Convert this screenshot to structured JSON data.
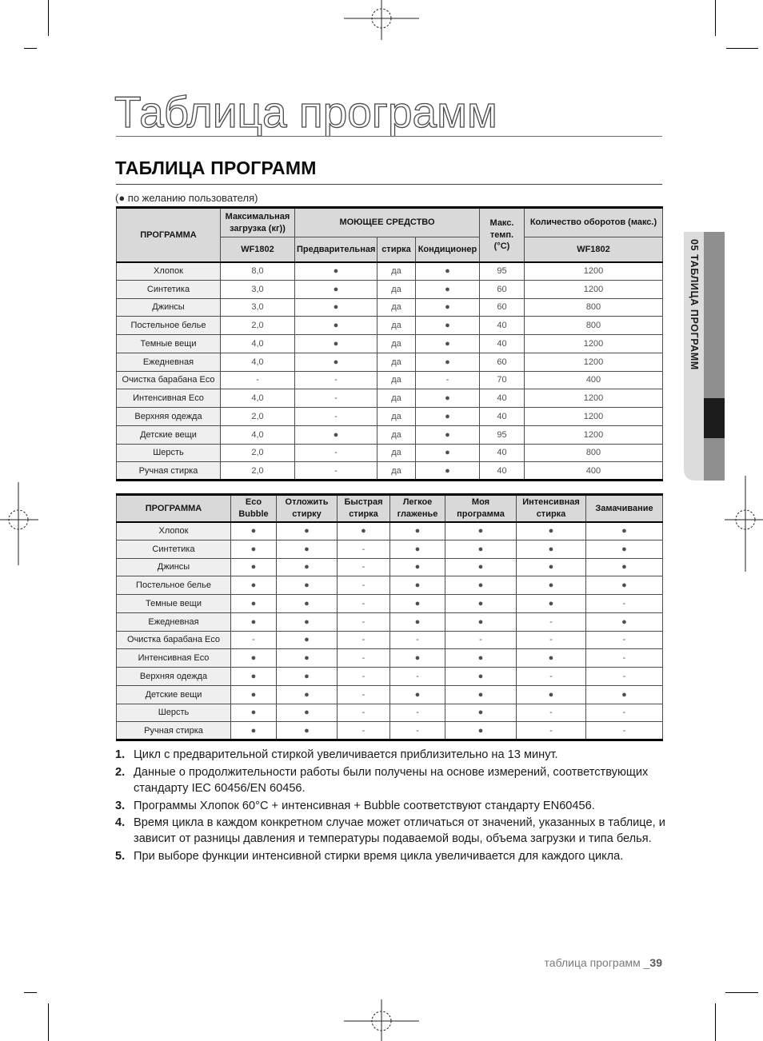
{
  "page_title": "Таблица программ",
  "section": {
    "heading": "ТАБЛИЦА ПРОГРАММ",
    "note": "(● по желанию пользователя)"
  },
  "sidebar": {
    "tab_label": "05 ТАБЛИЦА ПРОГРАММ"
  },
  "footer": {
    "label": "таблица программ _",
    "page_number": "39"
  },
  "table1": {
    "header": {
      "program": "ПРОГРАММА",
      "max_load": "Максимальная загрузка (кг))",
      "max_load_model": "WF1802",
      "detergent": "МОЮЩЕЕ СРЕДСТВО",
      "prewash": "Предварительная",
      "wash": "стирка",
      "softener": "Кондиционер",
      "max_temp_line1": "Макс.",
      "max_temp_line2": "темп. (°C)",
      "spin": "Количество оборотов (макс.)",
      "spin_model": "WF1802"
    },
    "rows": [
      [
        "Хлопок",
        "8,0",
        "●",
        "да",
        "●",
        "95",
        "1200"
      ],
      [
        "Синтетика",
        "3,0",
        "●",
        "да",
        "●",
        "60",
        "1200"
      ],
      [
        "Джинсы",
        "3,0",
        "●",
        "да",
        "●",
        "60",
        "800"
      ],
      [
        "Постельное белье",
        "2,0",
        "●",
        "да",
        "●",
        "40",
        "800"
      ],
      [
        "Темные вещи",
        "4,0",
        "●",
        "да",
        "●",
        "40",
        "1200"
      ],
      [
        "Ежедневная",
        "4,0",
        "●",
        "да",
        "●",
        "60",
        "1200"
      ],
      [
        "Очистка барабана Eco",
        "-",
        "-",
        "да",
        "-",
        "70",
        "400"
      ],
      [
        "Интенсивная Eco",
        "4,0",
        "-",
        "да",
        "●",
        "40",
        "1200"
      ],
      [
        "Верхняя одежда",
        "2,0",
        "-",
        "да",
        "●",
        "40",
        "1200"
      ],
      [
        "Детские вещи",
        "4,0",
        "●",
        "да",
        "●",
        "95",
        "1200"
      ],
      [
        "Шерсть",
        "2,0",
        "-",
        "да",
        "●",
        "40",
        "800"
      ],
      [
        "Ручная стирка",
        "2,0",
        "-",
        "да",
        "●",
        "40",
        "400"
      ]
    ]
  },
  "table2": {
    "header": [
      "ПРОГРАММА",
      "Eco Bubble",
      "Отложить стирку",
      "Быстрая стирка",
      "Легкое глаженье",
      "Моя программа",
      "Интенсивная стирка",
      "Замачивание"
    ],
    "rows": [
      [
        "Хлопок",
        "●",
        "●",
        "●",
        "●",
        "●",
        "●",
        "●"
      ],
      [
        "Синтетика",
        "●",
        "●",
        "-",
        "●",
        "●",
        "●",
        "●"
      ],
      [
        "Джинсы",
        "●",
        "●",
        "-",
        "●",
        "●",
        "●",
        "●"
      ],
      [
        "Постельное белье",
        "●",
        "●",
        "-",
        "●",
        "●",
        "●",
        "●"
      ],
      [
        "Темные вещи",
        "●",
        "●",
        "-",
        "●",
        "●",
        "●",
        "-"
      ],
      [
        "Ежедневная",
        "●",
        "●",
        "-",
        "●",
        "●",
        "-",
        "●"
      ],
      [
        "Очистка барабана Eco",
        "-",
        "●",
        "-",
        "-",
        "-",
        "-",
        "-"
      ],
      [
        "Интенсивная Eco",
        "●",
        "●",
        "-",
        "●",
        "●",
        "●",
        "-"
      ],
      [
        "Верхняя одежда",
        "●",
        "●",
        "-",
        "-",
        "●",
        "-",
        "-"
      ],
      [
        "Детские вещи",
        "●",
        "●",
        "-",
        "●",
        "●",
        "●",
        "●"
      ],
      [
        "Шерсть",
        "●",
        "●",
        "-",
        "-",
        "●",
        "-",
        "-"
      ],
      [
        "Ручная стирка",
        "●",
        "●",
        "-",
        "-",
        "●",
        "-",
        "-"
      ]
    ]
  },
  "footnotes": [
    "Цикл с предварительной стиркой увеличивается приблизительно на 13 минут.",
    "Данные о продолжительности работы были получены на основе измерений, соответствующих стандарту IEC 60456/EN 60456.",
    "Программы Хлопок 60°C + интенсивная + Bubble соответствуют стандарту EN60456.",
    "Время цикла в каждом конкретном случае может отличаться от значений, указанных в таблице, и зависит от разницы давления и температуры подаваемой воды, объема загрузки и типа белья.",
    "При выборе функции интенсивной стирки время цикла увеличивается для каждого цикла."
  ]
}
